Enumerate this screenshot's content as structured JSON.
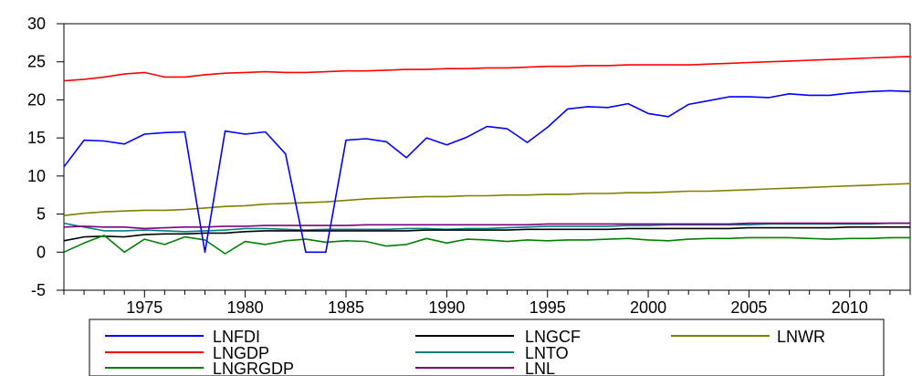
{
  "chart_data": {
    "type": "line",
    "title": "",
    "xlabel": "",
    "ylabel": "",
    "xlim": [
      1971,
      2013
    ],
    "ylim": [
      -5,
      30
    ],
    "grid": false,
    "legend_placement": "bottom",
    "yticks": [
      "-5",
      "0",
      "5",
      "10",
      "15",
      "20",
      "25",
      "30"
    ],
    "xticks": [
      "1975",
      "1980",
      "1985",
      "1990",
      "1995",
      "2000",
      "2005",
      "2010"
    ],
    "x": [
      1971,
      1972,
      1973,
      1974,
      1975,
      1976,
      1977,
      1978,
      1979,
      1980,
      1981,
      1982,
      1983,
      1984,
      1985,
      1986,
      1987,
      1988,
      1989,
      1990,
      1991,
      1992,
      1993,
      1994,
      1995,
      1996,
      1997,
      1998,
      1999,
      2000,
      2001,
      2002,
      2003,
      2004,
      2005,
      2006,
      2007,
      2008,
      2009,
      2010,
      2011,
      2012,
      2013
    ],
    "series": [
      {
        "name": "LNFDI",
        "color": "#0000ff",
        "values": [
          11.2,
          14.7,
          14.6,
          14.2,
          15.5,
          15.7,
          15.8,
          0.0,
          15.9,
          15.5,
          15.8,
          12.9,
          0.0,
          0.0,
          14.7,
          14.9,
          14.5,
          12.4,
          15.0,
          14.1,
          15.1,
          16.5,
          16.2,
          14.4,
          16.4,
          18.8,
          19.1,
          19.0,
          19.5,
          18.2,
          17.8,
          19.4,
          19.9,
          20.4,
          20.4,
          20.3,
          20.8,
          20.6,
          20.6,
          20.9,
          21.1,
          21.2,
          21.1
        ]
      },
      {
        "name": "LNGDP",
        "color": "#ff0000",
        "values": [
          22.5,
          22.7,
          23.0,
          23.4,
          23.6,
          23.0,
          23.0,
          23.3,
          23.5,
          23.6,
          23.7,
          23.6,
          23.6,
          23.7,
          23.8,
          23.8,
          23.9,
          24.0,
          24.0,
          24.1,
          24.1,
          24.2,
          24.2,
          24.3,
          24.4,
          24.4,
          24.5,
          24.5,
          24.6,
          24.6,
          24.6,
          24.6,
          24.7,
          24.8,
          24.9,
          25.0,
          25.1,
          25.2,
          25.3,
          25.4,
          25.5,
          25.6,
          25.7
        ]
      },
      {
        "name": "LNGRGDP",
        "color": "#008000",
        "values": [
          0.0,
          1.2,
          2.2,
          0.0,
          1.7,
          1.0,
          2.0,
          1.6,
          -0.2,
          1.4,
          1.0,
          1.5,
          1.7,
          1.3,
          1.5,
          1.4,
          0.8,
          1.0,
          1.8,
          1.2,
          1.7,
          1.6,
          1.4,
          1.6,
          1.5,
          1.6,
          1.6,
          1.7,
          1.8,
          1.6,
          1.5,
          1.7,
          1.8,
          1.8,
          1.9,
          1.9,
          1.9,
          1.8,
          1.7,
          1.8,
          1.8,
          1.9,
          1.9
        ]
      },
      {
        "name": "LNGCF",
        "color": "#000000",
        "values": [
          1.5,
          2.0,
          2.1,
          2.0,
          2.3,
          2.4,
          2.4,
          2.5,
          2.5,
          2.7,
          2.8,
          2.8,
          2.8,
          2.8,
          2.8,
          2.8,
          2.8,
          2.8,
          2.9,
          2.9,
          2.9,
          2.9,
          2.9,
          3.0,
          3.0,
          3.0,
          3.0,
          3.0,
          3.1,
          3.1,
          3.1,
          3.1,
          3.1,
          3.1,
          3.2,
          3.2,
          3.2,
          3.2,
          3.2,
          3.3,
          3.3,
          3.3,
          3.3
        ]
      },
      {
        "name": "LNTO",
        "color": "#008080",
        "values": [
          3.8,
          3.3,
          2.8,
          2.8,
          2.9,
          2.8,
          2.7,
          2.8,
          2.9,
          3.1,
          3.1,
          3.0,
          2.9,
          3.0,
          3.0,
          3.0,
          3.0,
          3.1,
          3.1,
          3.0,
          3.1,
          3.1,
          3.2,
          3.3,
          3.4,
          3.4,
          3.4,
          3.4,
          3.5,
          3.5,
          3.6,
          3.6,
          3.6,
          3.6,
          3.6,
          3.7,
          3.7,
          3.7,
          3.7,
          3.7,
          3.7,
          3.8,
          3.8
        ]
      },
      {
        "name": "LNL",
        "color": "#800080",
        "values": [
          3.3,
          3.4,
          3.3,
          3.3,
          3.1,
          3.2,
          3.3,
          3.3,
          3.4,
          3.4,
          3.5,
          3.5,
          3.5,
          3.5,
          3.5,
          3.6,
          3.6,
          3.6,
          3.6,
          3.6,
          3.6,
          3.6,
          3.6,
          3.6,
          3.7,
          3.7,
          3.7,
          3.7,
          3.7,
          3.7,
          3.7,
          3.7,
          3.7,
          3.7,
          3.8,
          3.8,
          3.8,
          3.8,
          3.8,
          3.8,
          3.8,
          3.8,
          3.8
        ]
      },
      {
        "name": "LNWR",
        "color": "#808000",
        "values": [
          4.8,
          5.1,
          5.3,
          5.4,
          5.5,
          5.5,
          5.6,
          5.8,
          6.0,
          6.1,
          6.3,
          6.4,
          6.5,
          6.6,
          6.8,
          7.0,
          7.1,
          7.2,
          7.3,
          7.3,
          7.4,
          7.4,
          7.5,
          7.5,
          7.6,
          7.6,
          7.7,
          7.7,
          7.8,
          7.8,
          7.9,
          8.0,
          8.0,
          8.1,
          8.2,
          8.3,
          8.4,
          8.5,
          8.6,
          8.7,
          8.8,
          8.9,
          9.0
        ]
      }
    ],
    "legend": [
      [
        "LNFDI",
        "LNGCF",
        "LNWR"
      ],
      [
        "LNGDP",
        "LNTO",
        ""
      ],
      [
        "LNGRGDP",
        "LNL",
        ""
      ]
    ]
  }
}
